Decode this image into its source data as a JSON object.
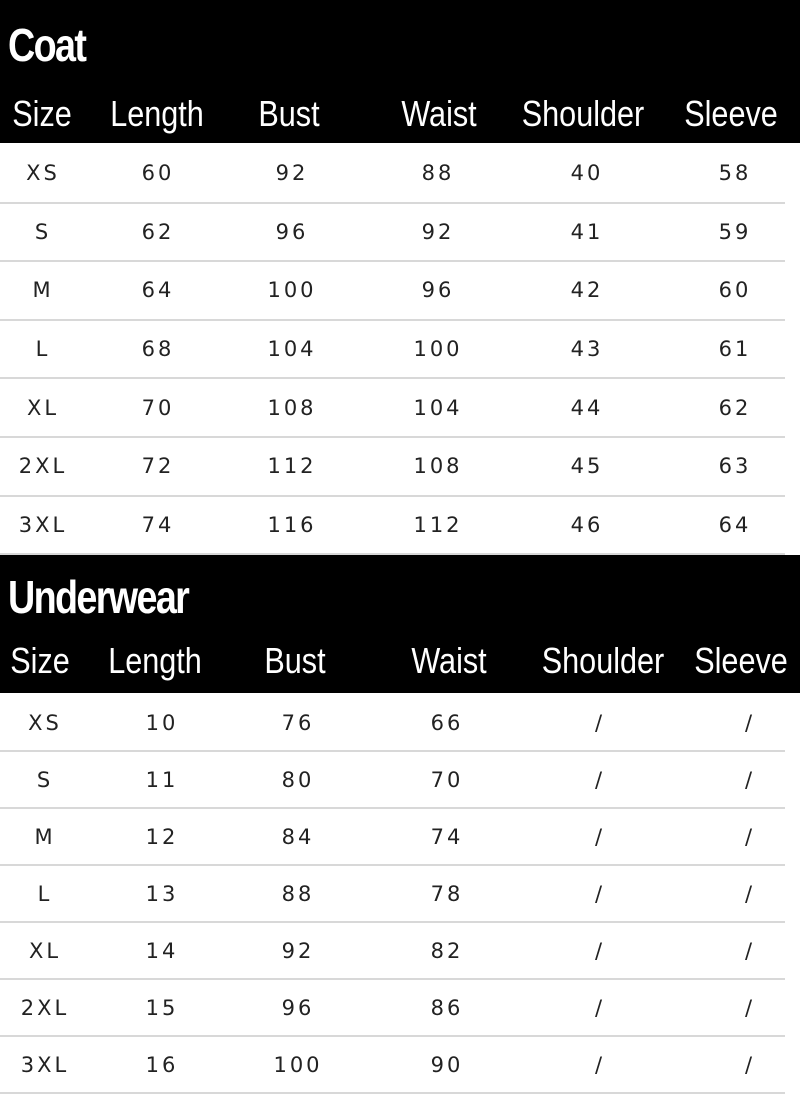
{
  "tables": [
    {
      "title": "Coat",
      "headers": [
        "Size",
        "Length",
        "Bust",
        "Waist",
        "Shoulder",
        "Sleeve"
      ],
      "rows": [
        [
          "XS",
          "60",
          "92",
          "88",
          "40",
          "58"
        ],
        [
          "S",
          "62",
          "96",
          "92",
          "41",
          "59"
        ],
        [
          "M",
          "64",
          "100",
          "96",
          "42",
          "60"
        ],
        [
          "L",
          "68",
          "104",
          "100",
          "43",
          "61"
        ],
        [
          "XL",
          "70",
          "108",
          "104",
          "44",
          "62"
        ],
        [
          "2XL",
          "72",
          "112",
          "108",
          "45",
          "63"
        ],
        [
          "3XL",
          "74",
          "116",
          "112",
          "46",
          "64"
        ]
      ]
    },
    {
      "title": "Underwear",
      "headers": [
        "Size",
        "Length",
        "Bust",
        "Waist",
        "Shoulder",
        "Sleeve"
      ],
      "rows": [
        [
          "XS",
          "10",
          "76",
          "66",
          "/",
          "/"
        ],
        [
          "S",
          "11",
          "80",
          "70",
          "/",
          "/"
        ],
        [
          "M",
          "12",
          "84",
          "74",
          "/",
          "/"
        ],
        [
          "L",
          "13",
          "88",
          "78",
          "/",
          "/"
        ],
        [
          "XL",
          "14",
          "92",
          "82",
          "/",
          "/"
        ],
        [
          "2XL",
          "15",
          "96",
          "86",
          "/",
          "/"
        ],
        [
          "3XL",
          "16",
          "100",
          "90",
          "/",
          "/"
        ]
      ]
    }
  ]
}
